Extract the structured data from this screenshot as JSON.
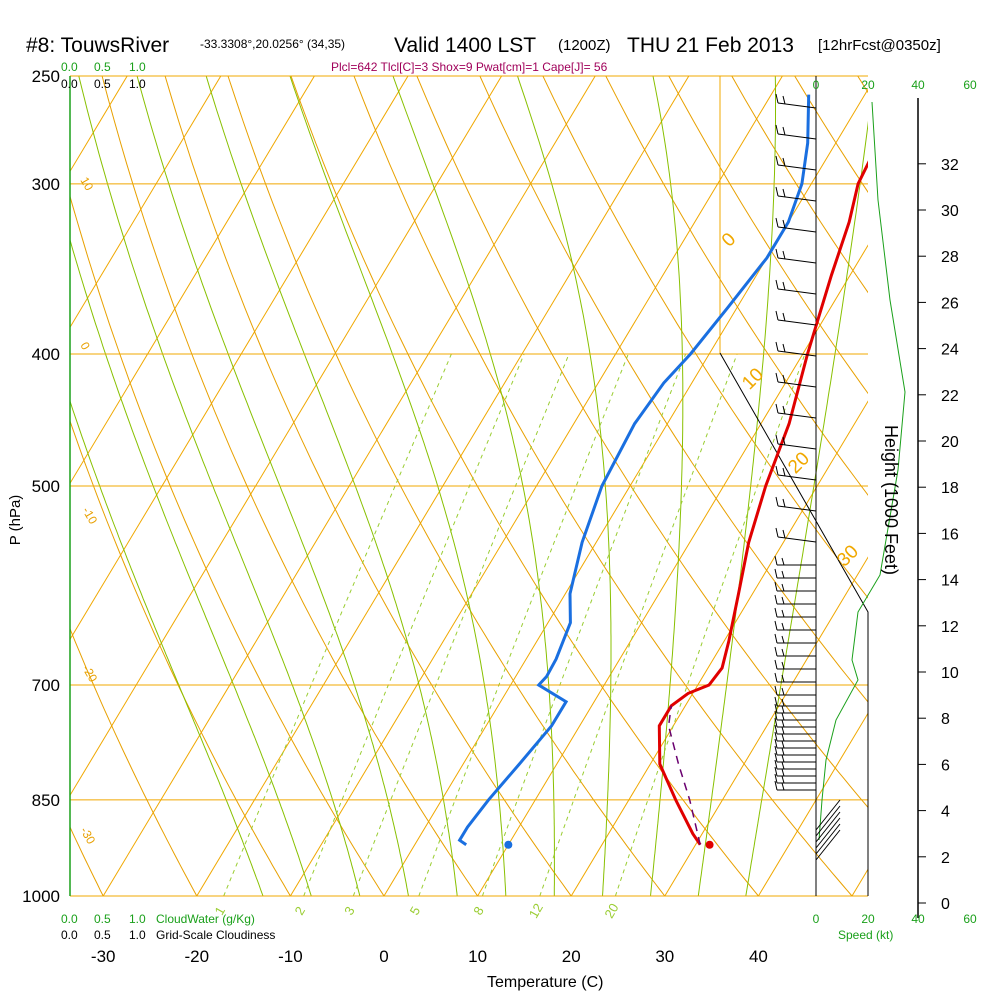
{
  "header": {
    "title_main": "#8: TouwsRiver",
    "coords": "-33.3308°,20.0256° (34,35)",
    "valid": "Valid 1400 LST",
    "zulu": "(1200Z)",
    "date": "THU 21 Feb 2013",
    "forecast": "[12hrFcst@0350z]",
    "indices": "Plcl=642 Tlcl[C]=3 Shox=9 Pwat[cm]=1 Cape[J]= 56"
  },
  "colors": {
    "isotherm": "#f0a800",
    "dry_adiabat": "#e8a000",
    "moist_adiabat": "#88c000",
    "mixing_ratio": "#9acd32",
    "temperature": "#e00000",
    "dewpoint": "#1a6fe0",
    "parcel": "#6a0070",
    "wind": "#000000",
    "green_label": "#1aa01a",
    "indices": "#a0005a"
  },
  "chart_data": {
    "type": "skew-t",
    "xlabel": "Temperature (C)",
    "ylabel": "P (hPa)",
    "y2label": "Height (1000 Feet)",
    "x_ticks": [
      "-30",
      "-20",
      "-10",
      "0",
      "10",
      "20",
      "30",
      "40"
    ],
    "x_tick_values": [
      -30,
      -20,
      -10,
      0,
      10,
      20,
      30,
      40
    ],
    "pressure_ticks": [
      "250",
      "300",
      "400",
      "500",
      "700",
      "850",
      "1000"
    ],
    "pressure_values": [
      250,
      300,
      400,
      500,
      700,
      850,
      1000
    ],
    "height_ticks": [
      "0",
      "2",
      "4",
      "6",
      "8",
      "10",
      "12",
      "14",
      "16",
      "18",
      "20",
      "22",
      "24",
      "26",
      "28",
      "30",
      "32"
    ],
    "height_values": [
      0,
      2,
      4,
      6,
      8,
      10,
      12,
      14,
      16,
      18,
      20,
      22,
      24,
      26,
      28,
      30,
      32
    ],
    "cloud_scale": [
      "0.0",
      "0.5",
      "1.0"
    ],
    "cloud_water_label": "CloudWater (g/Kg)",
    "cloudiness_label": "Grid-Scale Cloudiness",
    "speed_ticks": [
      "0",
      "20",
      "40",
      "60"
    ],
    "speed_label": "Speed (kt)",
    "isotherm_labels": [
      "0",
      "10",
      "20",
      "30"
    ],
    "left_labels": [
      "10",
      "0",
      "-10",
      "-20",
      "-30"
    ],
    "mixing_ratio_labels": [
      "1",
      "2",
      "3",
      "5",
      "8",
      "12",
      "20"
    ],
    "temperature": [
      {
        "p": 917,
        "t": 30.5
      },
      {
        "p": 900,
        "t": 29
      },
      {
        "p": 850,
        "t": 25
      },
      {
        "p": 800,
        "t": 21
      },
      {
        "p": 750,
        "t": 18.5
      },
      {
        "p": 725,
        "t": 18.5
      },
      {
        "p": 710,
        "t": 19.5
      },
      {
        "p": 700,
        "t": 21.2
      },
      {
        "p": 680,
        "t": 21.5
      },
      {
        "p": 650,
        "t": 20.5
      },
      {
        "p": 600,
        "t": 18.5
      },
      {
        "p": 550,
        "t": 16.3
      },
      {
        "p": 500,
        "t": 14.5
      },
      {
        "p": 450,
        "t": 13
      },
      {
        "p": 400,
        "t": 10.5
      },
      {
        "p": 350,
        "t": 8
      },
      {
        "p": 320,
        "t": 6.5
      },
      {
        "p": 300,
        "t": 5
      },
      {
        "p": 270,
        "t": 4.3
      },
      {
        "p": 255,
        "t": 4.3
      }
    ],
    "dewpoint": [
      {
        "p": 917,
        "t": 5.5
      },
      {
        "p": 910,
        "t": 4.5
      },
      {
        "p": 890,
        "t": 4.5
      },
      {
        "p": 850,
        "t": 5
      },
      {
        "p": 800,
        "t": 6
      },
      {
        "p": 750,
        "t": 7
      },
      {
        "p": 720,
        "t": 7
      },
      {
        "p": 700,
        "t": 3
      },
      {
        "p": 690,
        "t": 3.3
      },
      {
        "p": 670,
        "t": 3.2
      },
      {
        "p": 630,
        "t": 2.4
      },
      {
        "p": 600,
        "t": 0.5
      },
      {
        "p": 550,
        "t": -1.5
      },
      {
        "p": 500,
        "t": -3
      },
      {
        "p": 450,
        "t": -3.5
      },
      {
        "p": 420,
        "t": -3
      },
      {
        "p": 400,
        "t": -2
      },
      {
        "p": 370,
        "t": -1
      },
      {
        "p": 340,
        "t": 0
      },
      {
        "p": 320,
        "t": 0
      },
      {
        "p": 300,
        "t": -1
      },
      {
        "p": 280,
        "t": -3
      },
      {
        "p": 258,
        "t": -6
      }
    ],
    "parcel": [
      {
        "p": 917,
        "t": 30.5
      },
      {
        "p": 850,
        "t": 26.5
      },
      {
        "p": 800,
        "t": 23
      },
      {
        "p": 750,
        "t": 19.5
      },
      {
        "p": 725,
        "t": 18.5
      }
    ],
    "surface_temperature": 31.5,
    "surface_dewpoint": 10,
    "surface_pressure": 917
  }
}
